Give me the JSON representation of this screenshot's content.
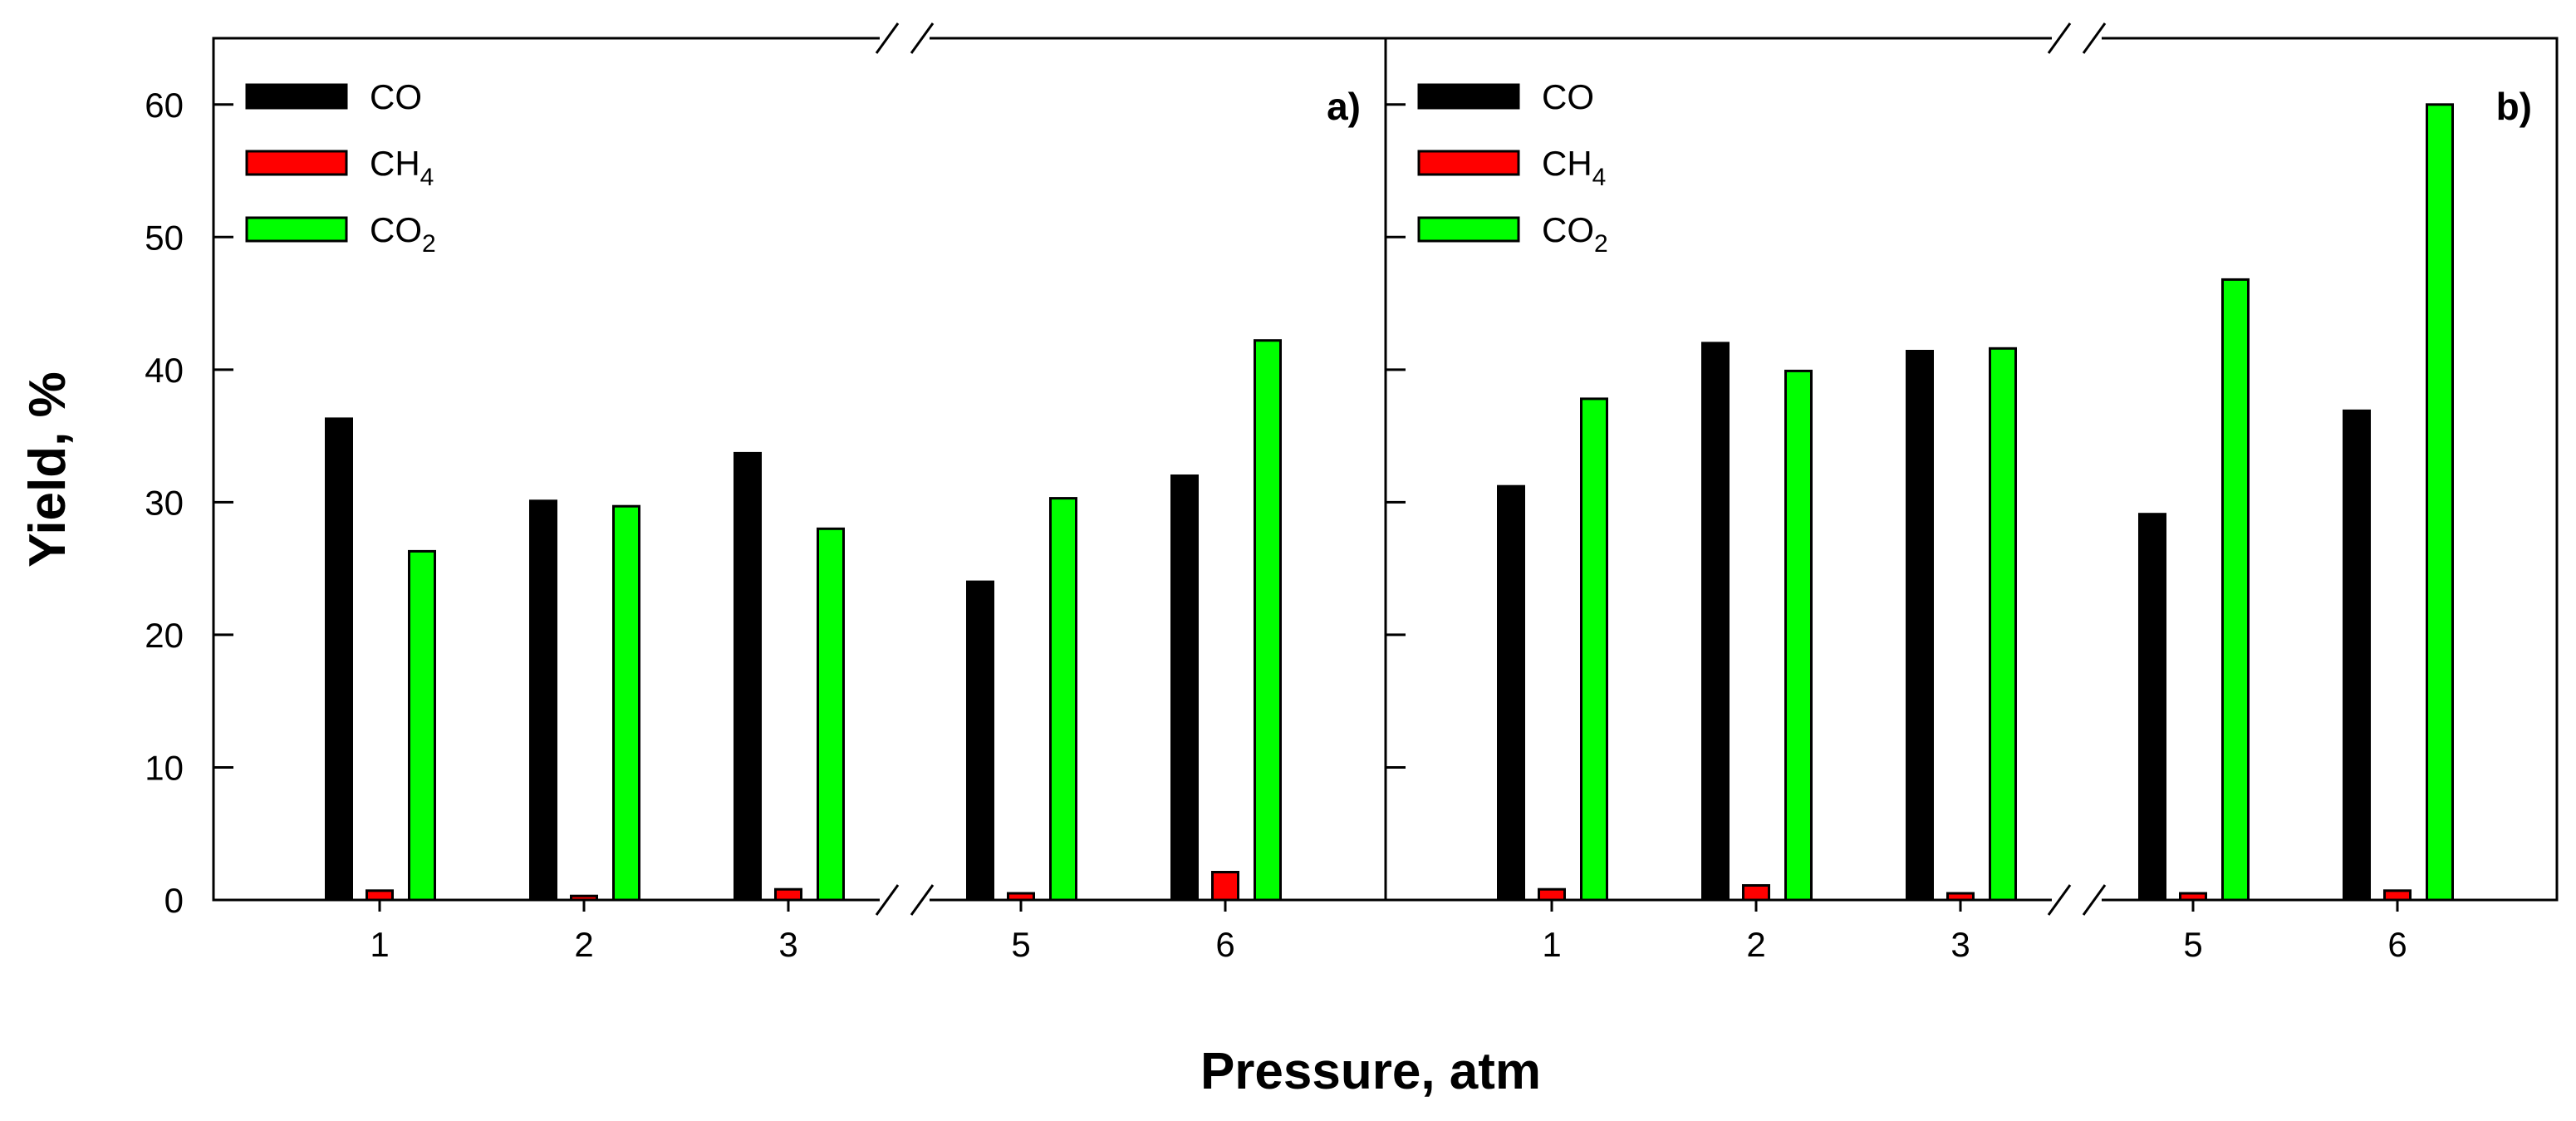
{
  "chart_data": [
    {
      "type": "bar",
      "panel_label": "a)",
      "categories": [
        "1",
        "2",
        "3",
        "5",
        "6"
      ],
      "axis_break_after_category": "3",
      "series": [
        {
          "name": "CO",
          "sub": "",
          "color": "#000000",
          "values": [
            36.3,
            30.1,
            33.7,
            24.0,
            32.0
          ]
        },
        {
          "name": "CH",
          "sub": "4",
          "color": "#ff0000",
          "values": [
            0.7,
            0.3,
            0.8,
            0.5,
            2.1
          ]
        },
        {
          "name": "CO",
          "sub": "2",
          "color": "#00ff00",
          "values": [
            26.3,
            29.7,
            28.0,
            30.3,
            42.2
          ]
        }
      ],
      "ylim": [
        0,
        65
      ],
      "yticks": [
        "0",
        "10",
        "20",
        "30",
        "40",
        "50",
        "60"
      ],
      "legend_position": "top-left"
    },
    {
      "type": "bar",
      "panel_label": "b)",
      "categories": [
        "1",
        "2",
        "3",
        "5",
        "6"
      ],
      "axis_break_after_category": "3",
      "series": [
        {
          "name": "CO",
          "sub": "",
          "color": "#000000",
          "values": [
            31.2,
            42.0,
            41.4,
            29.1,
            36.9
          ]
        },
        {
          "name": "CH",
          "sub": "4",
          "color": "#ff0000",
          "values": [
            0.8,
            1.1,
            0.5,
            0.5,
            0.7
          ]
        },
        {
          "name": "CO",
          "sub": "2",
          "color": "#00ff00",
          "values": [
            37.8,
            39.9,
            41.6,
            46.8,
            60.0
          ]
        }
      ],
      "ylim": [
        0,
        65
      ],
      "yticks": [
        "0",
        "10",
        "20",
        "30",
        "40",
        "50",
        "60"
      ],
      "legend_position": "top-left"
    }
  ],
  "ylabel": "Yield, %",
  "xlabel": "Pressure, atm"
}
